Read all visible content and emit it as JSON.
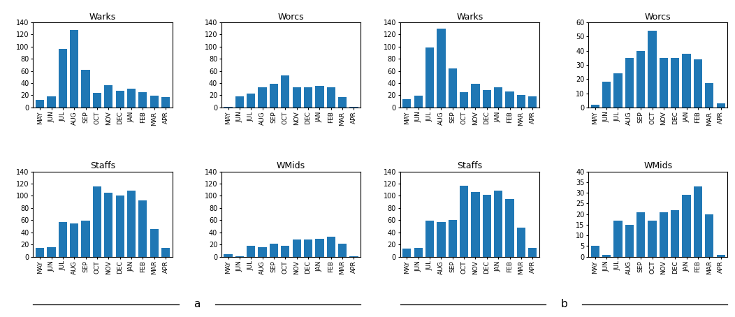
{
  "chart_data": [
    {
      "type": "bar",
      "title": "Warks",
      "categories": [
        "MAY",
        "JUN",
        "JUL",
        "AUG",
        "SEP",
        "OCT",
        "NOV",
        "DEC",
        "JAN",
        "FEB",
        "MAR",
        "APR"
      ],
      "values": [
        13,
        18,
        96,
        127,
        62,
        24,
        37,
        28,
        31,
        25,
        19,
        17
      ],
      "ylim": [
        0,
        140
      ],
      "yticks": [
        0,
        20,
        40,
        60,
        80,
        100,
        120,
        140
      ],
      "grid": false
    },
    {
      "type": "bar",
      "title": "Worcs",
      "categories": [
        "MAY",
        "JUN",
        "JUL",
        "AUG",
        "SEP",
        "OCT",
        "NOV",
        "DEC",
        "JAN",
        "FEB",
        "MAR",
        "APR"
      ],
      "values": [
        1,
        18,
        23,
        33,
        39,
        53,
        33,
        33,
        36,
        33,
        17,
        1
      ],
      "ylim": [
        0,
        140
      ],
      "yticks": [
        0,
        20,
        40,
        60,
        80,
        100,
        120,
        140
      ],
      "grid": false
    },
    {
      "type": "bar",
      "title": "Staffs",
      "categories": [
        "MAY",
        "JUN",
        "JUL",
        "AUG",
        "SEP",
        "OCT",
        "NOV",
        "DEC",
        "JAN",
        "FEB",
        "MAR",
        "APR"
      ],
      "values": [
        15,
        16,
        57,
        55,
        59,
        115,
        105,
        101,
        108,
        93,
        46,
        15
      ],
      "ylim": [
        0,
        140
      ],
      "yticks": [
        0,
        20,
        40,
        60,
        80,
        100,
        120,
        140
      ],
      "grid": false
    },
    {
      "type": "bar",
      "title": "WMids",
      "categories": [
        "MAY",
        "JUN",
        "JUL",
        "AUG",
        "SEP",
        "OCT",
        "NOV",
        "DEC",
        "JAN",
        "FEB",
        "MAR",
        "APR"
      ],
      "values": [
        4,
        1,
        18,
        16,
        22,
        18,
        28,
        28,
        30,
        33,
        21,
        1
      ],
      "ylim": [
        0,
        140
      ],
      "yticks": [
        0,
        20,
        40,
        60,
        80,
        100,
        120,
        140
      ],
      "grid": false
    },
    {
      "type": "bar",
      "title": "Warks",
      "categories": [
        "MAY",
        "JUN",
        "JUL",
        "AUG",
        "SEP",
        "OCT",
        "NOV",
        "DEC",
        "JAN",
        "FEB",
        "MAR",
        "APR"
      ],
      "values": [
        14,
        19,
        98,
        130,
        64,
        25,
        39,
        29,
        33,
        26,
        21,
        18
      ],
      "ylim": [
        0,
        140
      ],
      "yticks": [
        0,
        20,
        40,
        60,
        80,
        100,
        120,
        140
      ],
      "grid": false
    },
    {
      "type": "bar",
      "title": "Worcs",
      "categories": [
        "MAY",
        "JUN",
        "JUL",
        "AUG",
        "SEP",
        "OCT",
        "NOV",
        "DEC",
        "JAN",
        "FEB",
        "MAR",
        "APR"
      ],
      "values": [
        2,
        18,
        24,
        35,
        40,
        54,
        35,
        35,
        38,
        34,
        17,
        3
      ],
      "ylim": [
        0,
        60
      ],
      "yticks": [
        0,
        10,
        20,
        30,
        40,
        50,
        60
      ],
      "grid": false
    },
    {
      "type": "bar",
      "title": "Staffs",
      "categories": [
        "MAY",
        "JUN",
        "JUL",
        "AUG",
        "SEP",
        "OCT",
        "NOV",
        "DEC",
        "JAN",
        "FEB",
        "MAR",
        "APR"
      ],
      "values": [
        13,
        15,
        59,
        57,
        61,
        117,
        106,
        102,
        109,
        95,
        48,
        15
      ],
      "ylim": [
        0,
        140
      ],
      "yticks": [
        0,
        20,
        40,
        60,
        80,
        100,
        120,
        140
      ],
      "grid": false
    },
    {
      "type": "bar",
      "title": "WMids",
      "categories": [
        "MAY",
        "JUN",
        "JUL",
        "AUG",
        "SEP",
        "OCT",
        "NOV",
        "DEC",
        "JAN",
        "FEB",
        "MAR",
        "APR"
      ],
      "values": [
        5,
        1,
        17,
        15,
        21,
        17,
        21,
        22,
        29,
        33,
        20,
        1
      ],
      "ylim": [
        0,
        40
      ],
      "yticks": [
        0,
        5,
        10,
        15,
        20,
        25,
        30,
        35,
        40
      ],
      "grid": false
    }
  ],
  "annotations": [
    "a",
    "b"
  ]
}
